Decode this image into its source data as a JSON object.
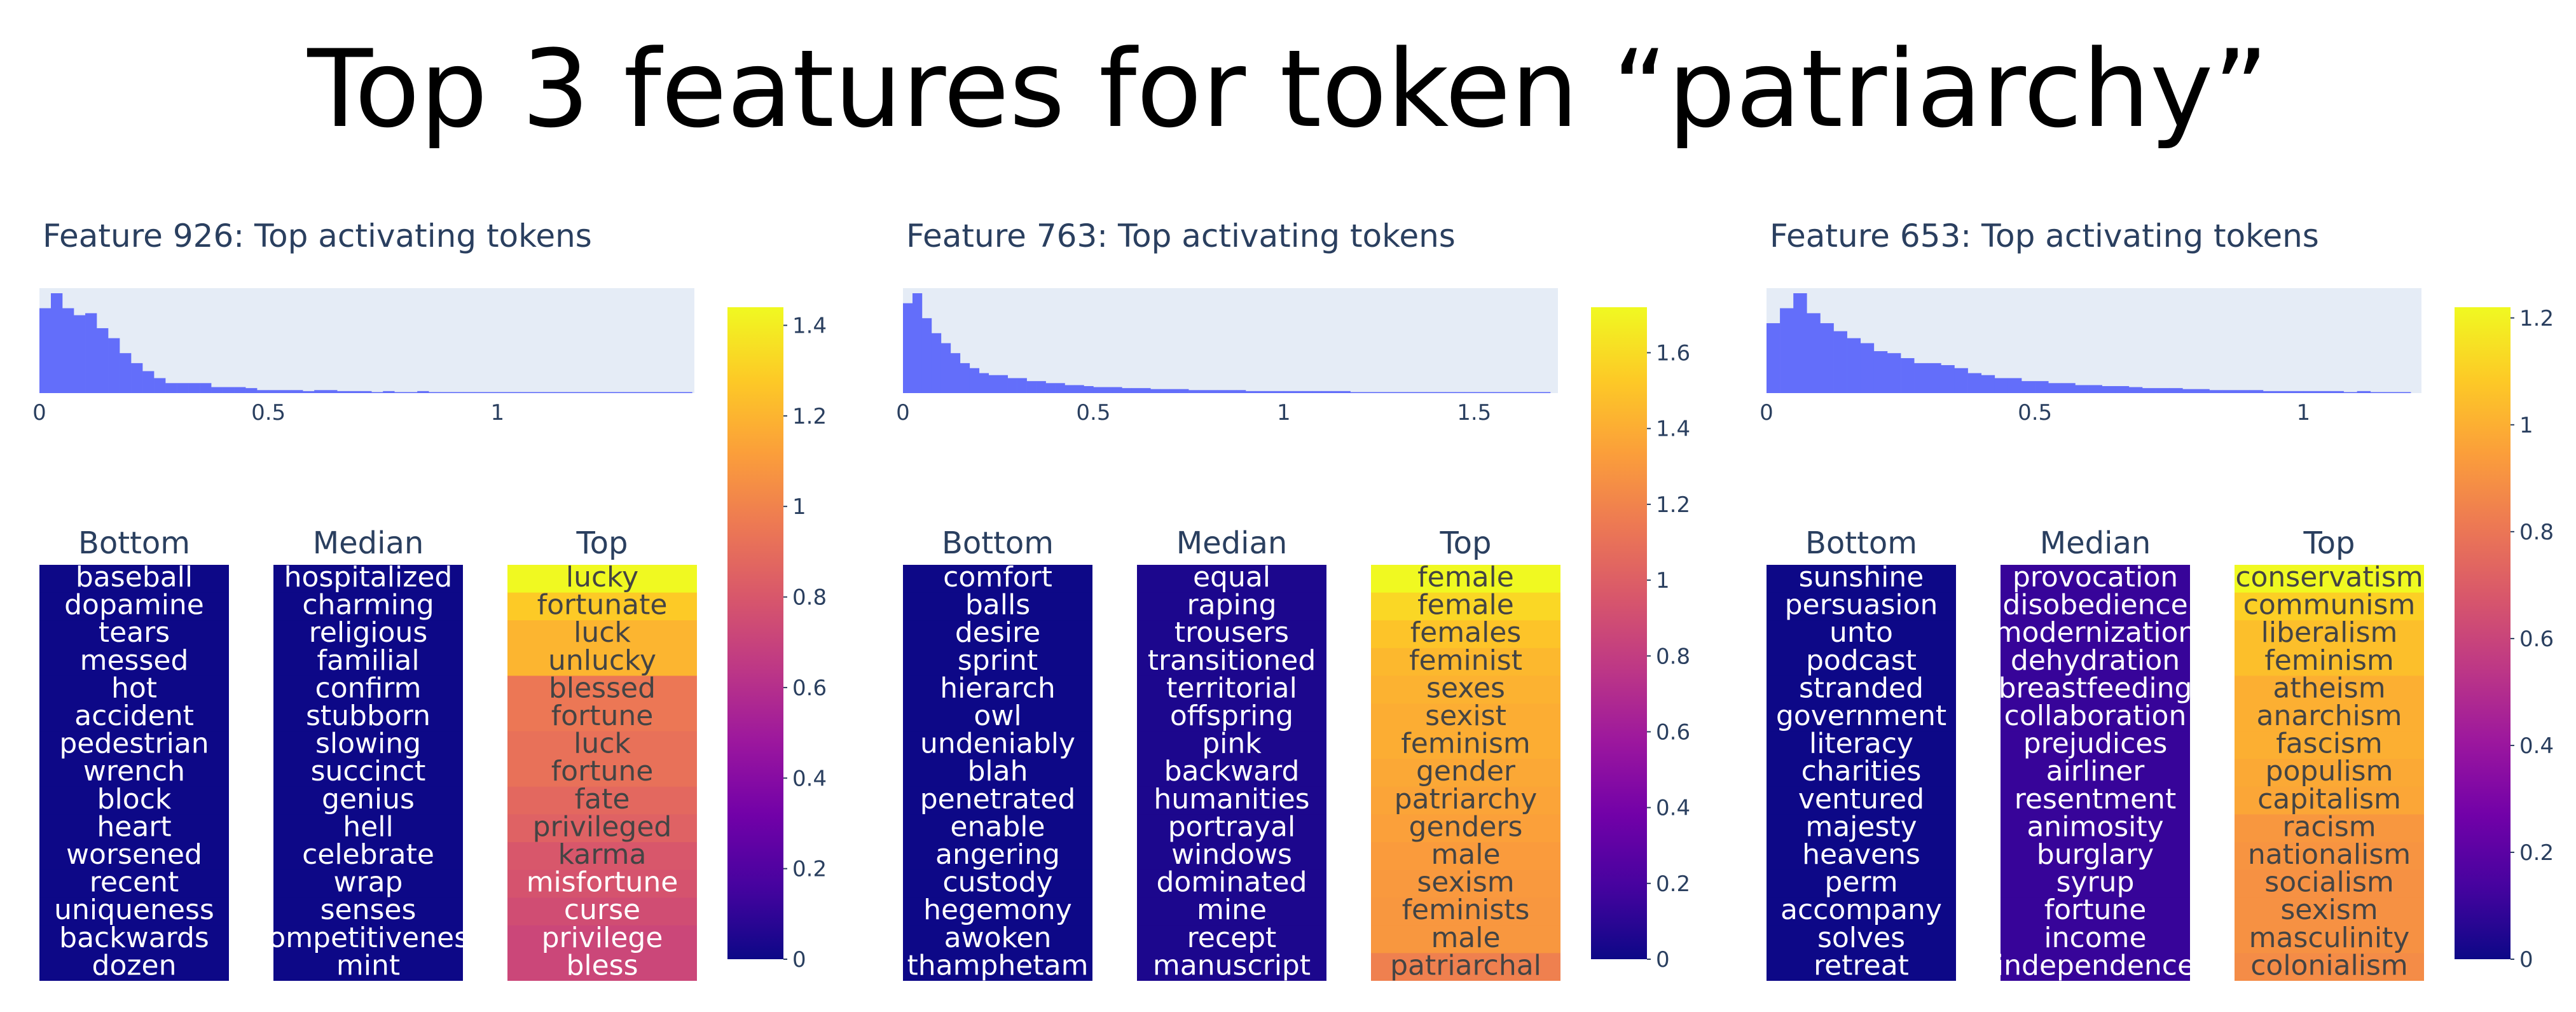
{
  "title": "Top 3 features for token “patriarchy”",
  "colors": {
    "hist_bar": "#636efa",
    "hist_bg": "#e5ecf6",
    "text_dark": "#2a3f5f",
    "colorscale": [
      "#0d0887",
      "#46039f",
      "#7201a8",
      "#9c179e",
      "#bd3786",
      "#d8576b",
      "#ed7953",
      "#fb9f3a",
      "#fdca26",
      "#f0f921"
    ]
  },
  "chart_data": [
    {
      "type": "heatmap",
      "title": "Feature 926: Top activating tokens",
      "histogram": {
        "bin_width": 0.025,
        "xlim": [
          0,
          1.43
        ],
        "xticks": [
          0,
          0.5,
          1
        ],
        "xtick_labels": [
          "0",
          "0.5",
          "1"
        ],
        "counts": [
          85,
          100,
          85,
          78,
          80,
          65,
          55,
          40,
          30,
          22,
          15,
          10,
          10,
          10,
          10,
          6,
          6,
          6,
          5,
          3,
          3,
          3,
          3,
          2,
          3,
          3,
          2,
          2,
          2,
          1,
          2,
          1,
          1,
          2,
          1,
          1,
          1,
          1,
          1,
          1,
          1,
          1,
          1,
          1,
          1,
          1,
          1,
          1,
          1,
          1,
          1,
          1,
          1,
          1,
          1,
          1,
          1
        ],
        "ymax": 100
      },
      "colorbar": {
        "range": [
          0,
          1.44
        ],
        "ticks": [
          0,
          0.2,
          0.4,
          0.6,
          0.8,
          1,
          1.2,
          1.4
        ],
        "tick_labels": [
          "0",
          "0.2",
          "0.4",
          "0.6",
          "0.8",
          "1",
          "1.2",
          "1.4"
        ]
      },
      "columns": [
        {
          "header": "Bottom",
          "tokens": [
            "baseball",
            "dopamine",
            "tears",
            "messed",
            "hot",
            "accident",
            "pedestrian",
            "wrench",
            "block",
            "heart",
            "worsened",
            "recent",
            "uniqueness",
            "backwards",
            "dozen"
          ],
          "values": [
            0,
            0,
            0,
            0,
            0,
            0,
            0,
            0,
            0,
            0,
            0,
            0,
            0,
            0,
            0
          ]
        },
        {
          "header": "Median",
          "tokens": [
            "hospitalized",
            "charming",
            "religious",
            "familial",
            "confirm",
            "stubborn",
            "slowing",
            "succinct",
            "genius",
            "hell",
            "celebrate",
            "wrap",
            "senses",
            "competitiveness",
            "mint"
          ],
          "values": [
            0,
            0,
            0,
            0,
            0,
            0,
            0,
            0,
            0,
            0,
            0,
            0,
            0,
            0,
            0
          ]
        },
        {
          "header": "Top",
          "tokens": [
            "lucky",
            "fortunate",
            "luck",
            "unlucky",
            "blessed",
            "fortune",
            "luck",
            "fortune",
            "fate",
            "privileged",
            "karma",
            "misfortune",
            "curse",
            "privilege",
            "bless"
          ],
          "values": [
            1.44,
            1.28,
            1.2,
            1.2,
            0.95,
            0.95,
            0.92,
            0.92,
            0.88,
            0.85,
            0.8,
            0.78,
            0.75,
            0.72,
            0.72
          ]
        }
      ]
    },
    {
      "type": "heatmap",
      "title": "Feature 763: Top activating tokens",
      "histogram": {
        "bin_width": 0.025,
        "xlim": [
          0,
          1.72
        ],
        "xticks": [
          0,
          0.5,
          1,
          1.5
        ],
        "xtick_labels": [
          "0",
          "0.5",
          "1",
          "1.5"
        ],
        "counts": [
          90,
          100,
          75,
          60,
          50,
          40,
          30,
          25,
          20,
          18,
          18,
          15,
          15,
          12,
          12,
          10,
          10,
          8,
          8,
          7,
          6,
          6,
          6,
          5,
          5,
          5,
          4,
          4,
          4,
          4,
          3,
          3,
          3,
          3,
          3,
          3,
          2,
          2,
          2,
          2,
          2,
          2,
          2,
          2,
          2,
          2,
          2,
          1,
          1,
          1,
          1,
          1,
          1,
          1,
          1,
          1,
          1,
          1,
          1,
          1,
          1,
          1,
          1,
          1,
          1,
          1,
          1,
          1
        ],
        "ymax": 100
      },
      "colorbar": {
        "range": [
          0,
          1.72
        ],
        "ticks": [
          0,
          0.2,
          0.4,
          0.6,
          0.8,
          1,
          1.2,
          1.4,
          1.6
        ],
        "tick_labels": [
          "0",
          "0.2",
          "0.4",
          "0.6",
          "0.8",
          "1",
          "1.2",
          "1.4",
          "1.6"
        ]
      },
      "columns": [
        {
          "header": "Bottom",
          "tokens": [
            "comfort",
            "balls",
            "desire",
            "sprint",
            "hierarch",
            "owl",
            "undeniably",
            "blah",
            "penetrated",
            "enable",
            "angering",
            "custody",
            "hegemony",
            "awoken",
            "thamphetam"
          ],
          "values": [
            0,
            0,
            0,
            0,
            0,
            0,
            0,
            0,
            0,
            0,
            0,
            0,
            0,
            0,
            0
          ]
        },
        {
          "header": "Median",
          "tokens": [
            "equal",
            "raping",
            "trousers",
            "transitioned",
            "territorial",
            "offspring",
            "pink",
            "backward",
            "humanities",
            "portrayal",
            "windows",
            "dominated",
            "mine",
            "recept",
            "manuscript"
          ],
          "values": [
            0.05,
            0.05,
            0.05,
            0.05,
            0.05,
            0.05,
            0.05,
            0.05,
            0.05,
            0.05,
            0.05,
            0.05,
            0.05,
            0.05,
            0.05
          ]
        },
        {
          "header": "Top",
          "tokens": [
            "female",
            "female",
            "females",
            "feminist",
            "sexes",
            "sexist",
            "feminism",
            "gender",
            "patriarchy",
            "genders",
            "male",
            "sexism",
            "feminists",
            "male",
            "patriarchal"
          ],
          "values": [
            1.72,
            1.58,
            1.5,
            1.45,
            1.42,
            1.4,
            1.4,
            1.38,
            1.36,
            1.34,
            1.32,
            1.31,
            1.3,
            1.3,
            1.18
          ]
        }
      ]
    },
    {
      "type": "heatmap",
      "title": "Feature 653: Top activating tokens",
      "histogram": {
        "bin_width": 0.025,
        "xlim": [
          0,
          1.22
        ],
        "xticks": [
          0,
          0.5,
          1
        ],
        "xtick_labels": [
          "0",
          "0.5",
          "1"
        ],
        "counts": [
          70,
          85,
          100,
          80,
          70,
          62,
          55,
          50,
          42,
          40,
          35,
          30,
          30,
          28,
          25,
          20,
          18,
          15,
          15,
          12,
          12,
          10,
          10,
          8,
          8,
          7,
          7,
          6,
          5,
          5,
          5,
          4,
          4,
          3,
          3,
          3,
          3,
          2,
          2,
          2,
          2,
          2,
          2,
          1,
          2,
          1,
          1,
          1,
          1
        ],
        "ymax": 100
      },
      "colorbar": {
        "range": [
          0,
          1.22
        ],
        "ticks": [
          0,
          0.2,
          0.4,
          0.6,
          0.8,
          1,
          1.2
        ],
        "tick_labels": [
          "0",
          "0.2",
          "0.4",
          "0.6",
          "0.8",
          "1",
          "1.2"
        ]
      },
      "columns": [
        {
          "header": "Bottom",
          "tokens": [
            "sunshine",
            "persuasion",
            "unto",
            "podcast",
            "stranded",
            "government",
            "literacy",
            "charities",
            "ventured",
            "majesty",
            "heavens",
            "perm",
            "accompany",
            "solves",
            "retreat"
          ],
          "values": [
            0,
            0,
            0,
            0,
            0,
            0,
            0,
            0,
            0,
            0,
            0,
            0,
            0,
            0,
            0
          ]
        },
        {
          "header": "Median",
          "tokens": [
            "provocation",
            "disobedience",
            "modernization",
            "dehydration",
            "breastfeeding",
            "collaboration",
            "prejudices",
            "airliner",
            "resentment",
            "animosity",
            "burglary",
            "syrup",
            "fortune",
            "income",
            "independence"
          ],
          "values": [
            0.1,
            0.1,
            0.1,
            0.1,
            0.1,
            0.1,
            0.1,
            0.1,
            0.1,
            0.1,
            0.1,
            0.1,
            0.1,
            0.1,
            0.1
          ]
        },
        {
          "header": "Top",
          "tokens": [
            "conservatism",
            "communism",
            "liberalism",
            "feminism",
            "atheism",
            "anarchism",
            "fascism",
            "populism",
            "capitalism",
            "racism",
            "nationalism",
            "socialism",
            "sexism",
            "masculinity",
            "colonialism"
          ],
          "values": [
            1.22,
            1.1,
            1.05,
            1.05,
            1.0,
            1.0,
            1.0,
            0.98,
            0.97,
            0.92,
            0.91,
            0.9,
            0.9,
            0.9,
            0.88
          ]
        }
      ]
    }
  ]
}
